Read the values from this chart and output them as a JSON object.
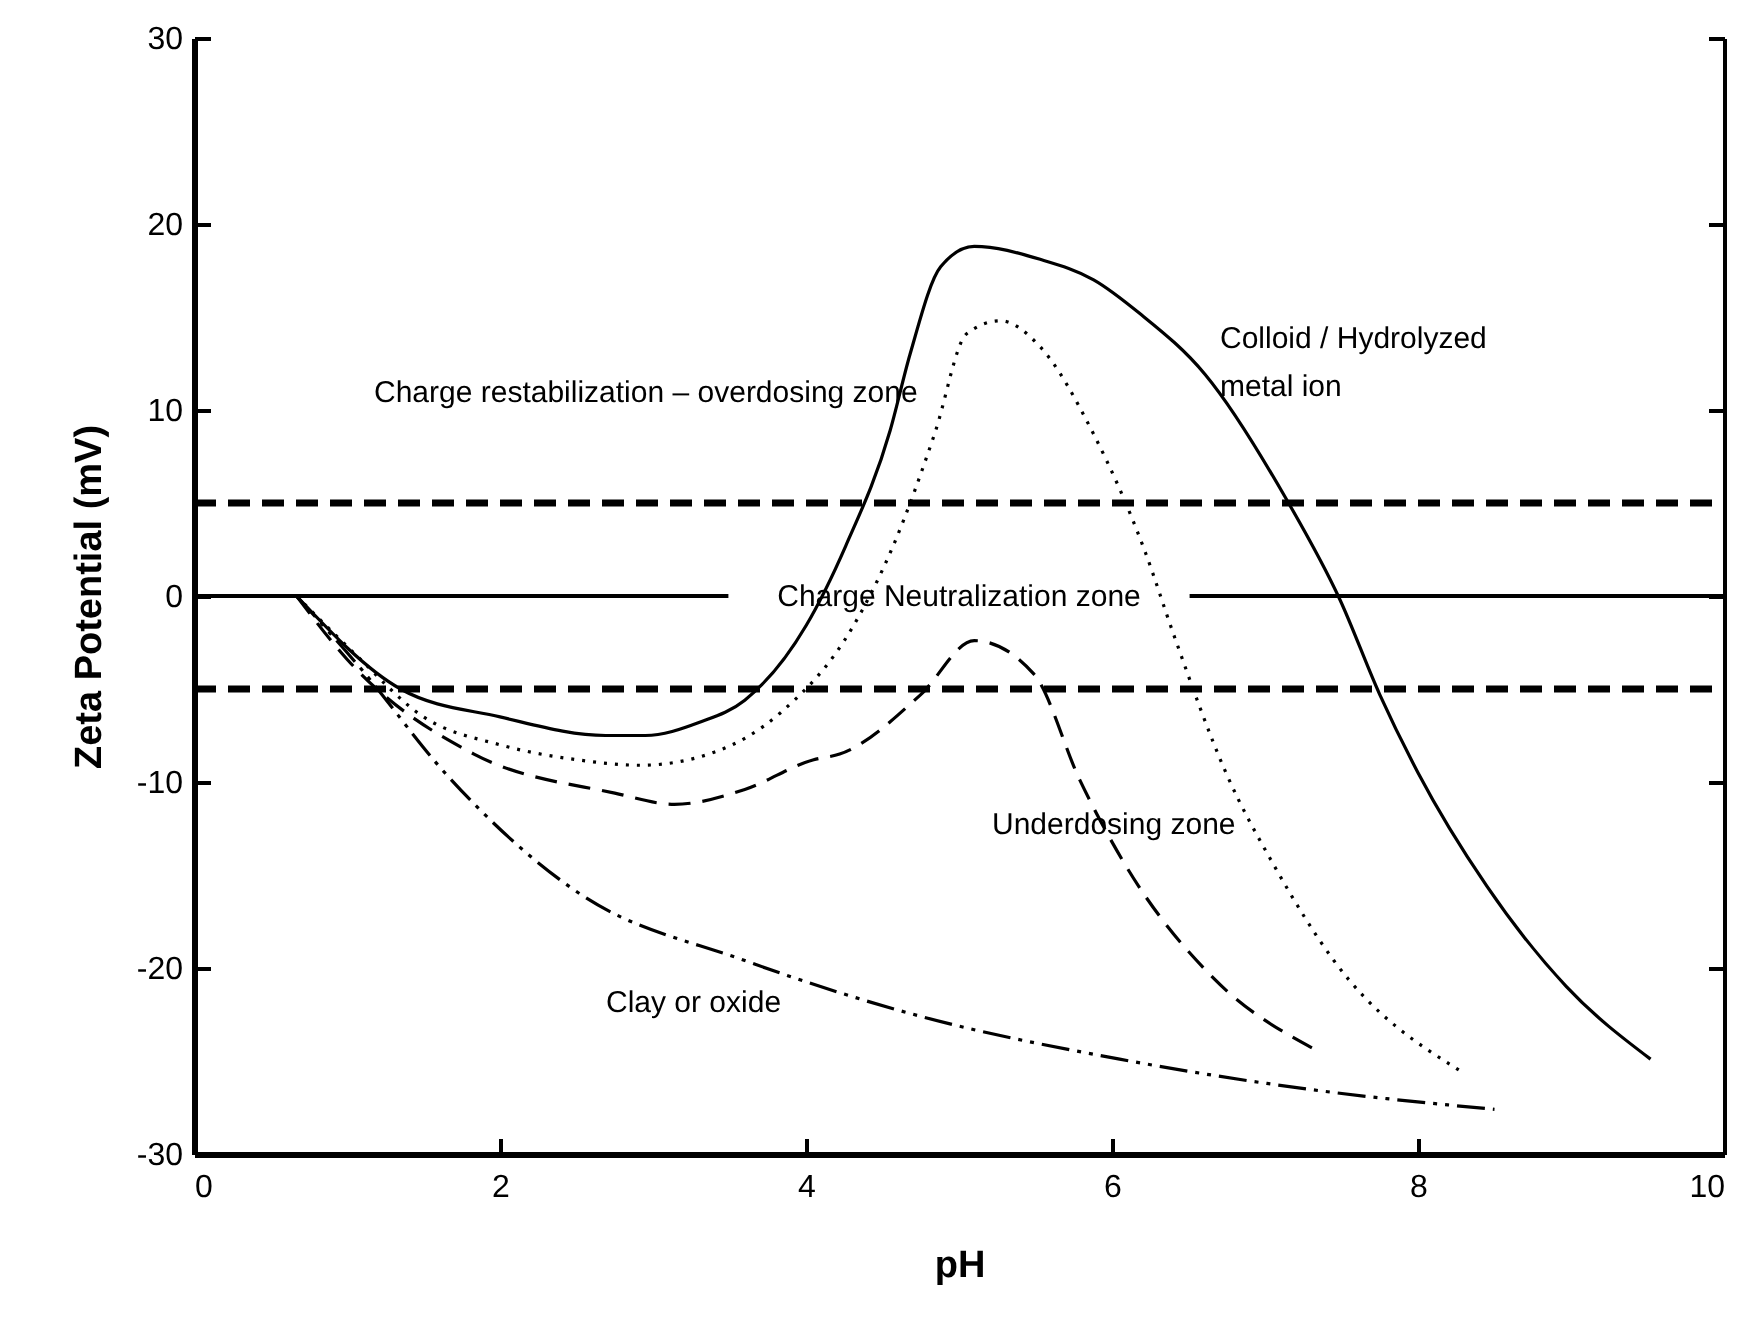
{
  "chart_data": {
    "type": "line",
    "xlabel": "pH",
    "ylabel": "Zeta Potential (mV)",
    "xlim": [
      0,
      10
    ],
    "ylim": [
      -30,
      30
    ],
    "xticks": [
      0,
      2,
      4,
      6,
      8,
      10
    ],
    "yticks": [
      -30,
      -20,
      -10,
      0,
      10,
      20,
      30
    ],
    "series": [
      {
        "name": "Colloid / Hydrolyzed\nmetal ion",
        "color": "#000000",
        "line_style": "solid",
        "x": [
          0.67,
          1.35,
          2.0,
          2.69,
          2.95,
          3.3,
          3.6,
          4.0,
          4.26,
          4.55,
          4.68,
          4.88,
          5.1,
          5.53,
          5.88,
          6.18,
          6.61,
          7.14,
          7.49,
          7.75,
          8.0,
          8.45,
          8.97,
          9.52
        ],
        "values": [
          0,
          -5,
          -6.5,
          -7.5,
          -7.5,
          -6.8,
          -5.6,
          -1.6,
          2.7,
          8.9,
          13,
          17.7,
          18.8,
          18.1,
          17,
          15.2,
          11.9,
          5.2,
          -0.2,
          -5.3,
          -9.5,
          -15.6,
          -21,
          -24.9
        ]
      },
      {
        "color": "#000000",
        "line_style": "dotted",
        "x": [
          0.67,
          1.05,
          1.5,
          2.0,
          2.5,
          2.92,
          3.4,
          3.83,
          4.31,
          4.57,
          4.84,
          5.05,
          5.27,
          5.53,
          5.88,
          6.22,
          6.4,
          6.75,
          7.06,
          7.45,
          8.27
        ],
        "values": [
          0,
          -3.1,
          -6.5,
          -8,
          -8.8,
          -9.1,
          -8.4,
          -6.3,
          -1.6,
          2.7,
          8.7,
          14.1,
          14.8,
          13.4,
          8.7,
          2.3,
          -2,
          -9.6,
          -14.5,
          -19.6,
          -25.5
        ]
      },
      {
        "color": "#000000",
        "line_style": "dashed",
        "x": [
          0.67,
          1.0,
          1.83,
          2.75,
          3.14,
          3.6,
          4.05,
          4.22,
          4.75,
          5.1,
          5.49,
          5.79,
          6.09,
          6.67,
          7.33
        ],
        "values": [
          0,
          -3.4,
          -8.5,
          -10.6,
          -11.2,
          -10.4,
          -8.8,
          -8.5,
          -5.3,
          -2.4,
          -4.2,
          -9.9,
          -14.5,
          -20.6,
          -24.4
        ]
      },
      {
        "name": "Clay or oxide",
        "color": "#000000",
        "line_style": "dashdot",
        "x": [
          0.67,
          1.08,
          1.65,
          2.52,
          3.6,
          4.75,
          6.05,
          7.36,
          8.5
        ],
        "values": [
          0,
          -3.8,
          -9.6,
          -16,
          -19.6,
          -22.6,
          -24.9,
          -26.6,
          -27.6
        ]
      }
    ],
    "ref_lines": [
      {
        "axis": "y",
        "value": 5,
        "line_style": "dashed",
        "color": "#000000"
      },
      {
        "axis": "y",
        "value": -5,
        "line_style": "dashed",
        "color": "#000000"
      },
      {
        "axis": "y",
        "value": 0,
        "line_style": "solid",
        "color": "#000000",
        "label": "Charge Neutralization zone"
      }
    ],
    "annotations": [
      "Charge restabilization – overdosing zone",
      "Underdosing zone"
    ]
  }
}
